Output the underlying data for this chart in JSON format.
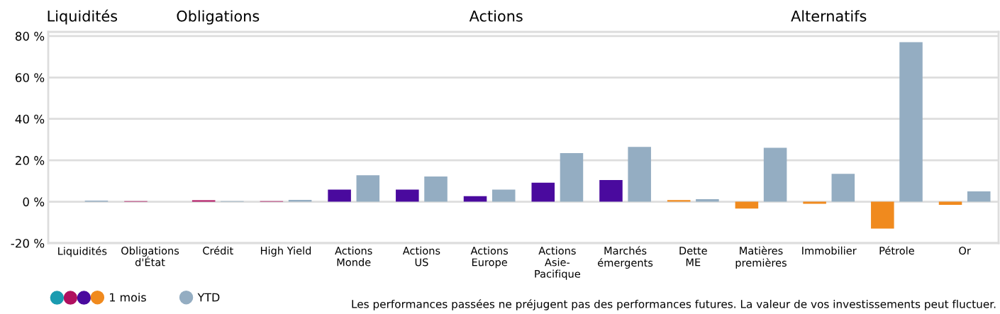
{
  "chart_data": {
    "type": "bar",
    "categories": [
      "Liquidités",
      "Obligations\nd'État",
      "Crédit",
      "High Yield",
      "Actions\nMonde",
      "Actions\nUS",
      "Actions\nEurope",
      "Actions\nAsie-\nPacifique",
      "Marchés\némergents",
      "Dette\nME",
      "Matières\npremières",
      "Immobilier",
      "Pétrole",
      "Or"
    ],
    "series": [
      {
        "name": "1 mois",
        "colors": [
          "#1a9bb0",
          "#b0105f",
          "#b0105f",
          "#b0105f",
          "#4a0a9e",
          "#4a0a9e",
          "#4a0a9e",
          "#4a0a9e",
          "#4a0a9e",
          "#f08a1e",
          "#f08a1e",
          "#f08a1e",
          "#f08a1e",
          "#f08a1e"
        ],
        "values": [
          0,
          0.3,
          0.7,
          0.3,
          5.8,
          5.8,
          2.7,
          9.2,
          10.5,
          0.8,
          -3.3,
          -1.0,
          -13,
          -1.5
        ]
      },
      {
        "name": "YTD",
        "color": "#94adc2",
        "values": [
          0.5,
          0,
          0.3,
          0.9,
          12.8,
          12.2,
          5.8,
          23.5,
          26.5,
          1.2,
          26,
          13.5,
          77,
          5
        ]
      }
    ],
    "ylim": [
      -20,
      82
    ],
    "yticks": [
      {
        "value": -20,
        "label": "-20 %"
      },
      {
        "value": 0,
        "label": "0 %"
      },
      {
        "value": 20,
        "label": "20 %"
      },
      {
        "value": 40,
        "label": "40 %"
      },
      {
        "value": 60,
        "label": "60 %"
      },
      {
        "value": 80,
        "label": "80 %"
      }
    ],
    "grid": "y",
    "legend": "bottom left",
    "annotations": [
      "Liquidités",
      "Obligations",
      "Actions",
      "Alternatifs",
      "Les performances passées ne préjugent pas des performances futures. La valeur de vos investissements peut fluctuer."
    ]
  }
}
